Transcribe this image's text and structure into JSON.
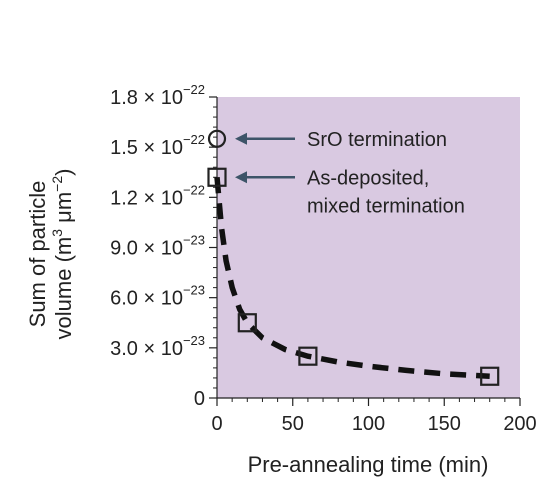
{
  "chart_data": {
    "type": "scatter",
    "xlabel": "Pre-annealing time (min)",
    "ylabel_line1": "Sum of particle",
    "ylabel_line2": "volume (m",
    "ylabel_sup1": "3",
    "ylabel_mid": " μm",
    "ylabel_sup2": "−2",
    "ylabel_end": ")",
    "xlim": [
      0,
      200
    ],
    "ylim": [
      0,
      1.8e-22
    ],
    "x_ticks": [
      0,
      50,
      100,
      150,
      200
    ],
    "x_tick_labels": [
      "0",
      "50",
      "100",
      "150",
      "200"
    ],
    "y_ticks": [
      0,
      3e-23,
      6e-23,
      9e-23,
      1.2e-22,
      1.5e-22,
      1.8e-22
    ],
    "y_tick_labels": [
      {
        "base": "0",
        "exp": ""
      },
      {
        "base": "3.0 × 10",
        "exp": "−23"
      },
      {
        "base": "6.0 × 10",
        "exp": "−23"
      },
      {
        "base": "9.0 × 10",
        "exp": "−23"
      },
      {
        "base": "1.2 × 10",
        "exp": "−22"
      },
      {
        "base": "1.5 × 10",
        "exp": "−22"
      },
      {
        "base": "1.8 × 10",
        "exp": "−22"
      }
    ],
    "series": [
      {
        "marker": "circle",
        "points": [
          {
            "x": 0,
            "y": 1.55e-22
          }
        ]
      },
      {
        "marker": "square",
        "points": [
          {
            "x": 0,
            "y": 1.32e-22
          },
          {
            "x": 20,
            "y": 4.5e-23
          },
          {
            "x": 60,
            "y": 2.5e-23
          },
          {
            "x": 180,
            "y": 1.3e-23
          }
        ]
      }
    ],
    "fit_curve": [
      [
        0,
        1.32e-22
      ],
      [
        3,
        1.02e-22
      ],
      [
        6,
        8.2e-23
      ],
      [
        10,
        6.6e-23
      ],
      [
        15,
        5.3e-23
      ],
      [
        20,
        4.5e-23
      ],
      [
        30,
        3.6e-23
      ],
      [
        45,
        2.9e-23
      ],
      [
        60,
        2.5e-23
      ],
      [
        80,
        2.15e-23
      ],
      [
        100,
        1.9e-23
      ],
      [
        125,
        1.65e-23
      ],
      [
        150,
        1.45e-23
      ],
      [
        180,
        1.3e-23
      ]
    ],
    "annotations": [
      {
        "text": "SrO termination",
        "target": {
          "x": 0,
          "y": 1.55e-22
        }
      },
      {
        "text": "As-deposited,",
        "text2": "mixed termination",
        "target": {
          "x": 0,
          "y": 1.32e-22
        }
      }
    ],
    "colors": {
      "plot_background": "#d9c9e1",
      "markers": "#222222",
      "fit_line": "#111111",
      "arrows": "#3d5468"
    },
    "grid": false
  }
}
